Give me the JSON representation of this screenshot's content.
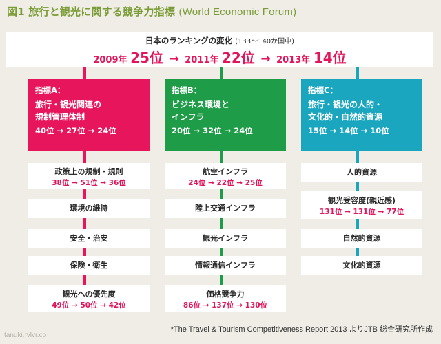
{
  "title": {
    "main": "図1 旅行と観光に関する競争力指標",
    "sub": "(World Economic Forum)"
  },
  "summary": {
    "heading": "日本のランキングの変化",
    "note": "(133〜140か国中)",
    "ranks": [
      {
        "year": "2009年",
        "rank": "25位"
      },
      {
        "year": "2011年",
        "rank": "22位"
      },
      {
        "year": "2013年",
        "rank": "14位"
      }
    ],
    "arrow": "→"
  },
  "colors": {
    "A": "#e7155b",
    "B": "#1f9c48",
    "C": "#1aa6bf",
    "rank_text": "#e1155a",
    "title": "#7a9c36"
  },
  "indicators": [
    {
      "label": "指標A：",
      "title": "旅行・観光関連の\n規制管理体制",
      "ranks": "40位 → 27位 → 24位",
      "subs": [
        {
          "name": "政策上の規制・規則",
          "ranks": "38位 → 51位 → 36位"
        },
        {
          "name": "環境の維持",
          "ranks": ""
        },
        {
          "name": "安全・治安",
          "ranks": ""
        },
        {
          "name": "保険・衛生",
          "ranks": ""
        },
        {
          "name": "観光への優先度",
          "ranks": "49位 → 50位 → 42位"
        }
      ]
    },
    {
      "label": "指標B：",
      "title": "ビジネス環境と\nインフラ",
      "ranks": "20位 → 32位 → 24位",
      "subs": [
        {
          "name": "航空インフラ",
          "ranks": "24位 → 22位 → 25位"
        },
        {
          "name": "陸上交通インフラ",
          "ranks": ""
        },
        {
          "name": "観光インフラ",
          "ranks": ""
        },
        {
          "name": "情報通信インフラ",
          "ranks": ""
        },
        {
          "name": "価格競争力",
          "ranks": "86位 → 137位 → 130位"
        }
      ]
    },
    {
      "label": "指標C：",
      "title": "旅行・観光の人的・\n文化的・自然的資源",
      "ranks": "15位 → 14位 → 10位",
      "subs": [
        {
          "name": "人的資源",
          "ranks": ""
        },
        {
          "name": "観光受容度(親近感)",
          "ranks": "131位 → 131位 → 77位"
        },
        {
          "name": "自然的資源",
          "ranks": ""
        },
        {
          "name": "文化的資源",
          "ranks": ""
        }
      ]
    }
  ],
  "footer": "*The Travel & Tourism Competitiveness Report 2013 よりJTB 総合研究所作成",
  "watermark": "tanuki.rvlvr.co"
}
